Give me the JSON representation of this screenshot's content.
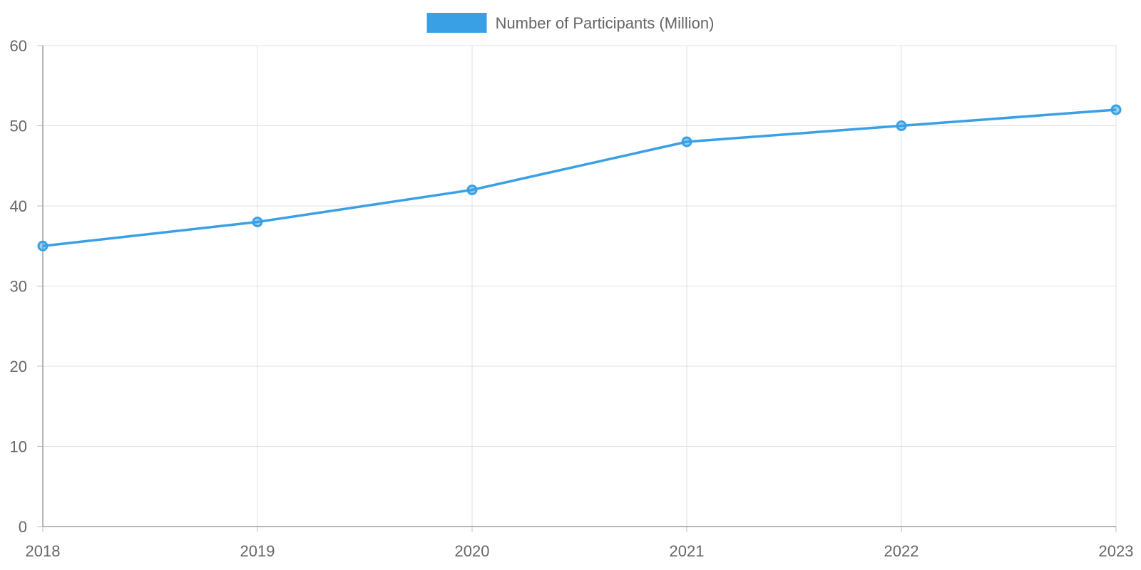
{
  "chart_data": {
    "type": "line",
    "x": [
      "2018",
      "2019",
      "2020",
      "2021",
      "2022",
      "2023"
    ],
    "series": [
      {
        "name": "Number of Participants (Million)",
        "values": [
          35,
          38,
          42,
          48,
          50,
          52
        ],
        "color": "#3aa0e6"
      }
    ],
    "ylim": [
      0,
      60
    ],
    "yticks": [
      0,
      10,
      20,
      30,
      40,
      50,
      60
    ],
    "grid": true,
    "legend_position": "top-center",
    "title": "",
    "xlabel": "",
    "ylabel": ""
  }
}
